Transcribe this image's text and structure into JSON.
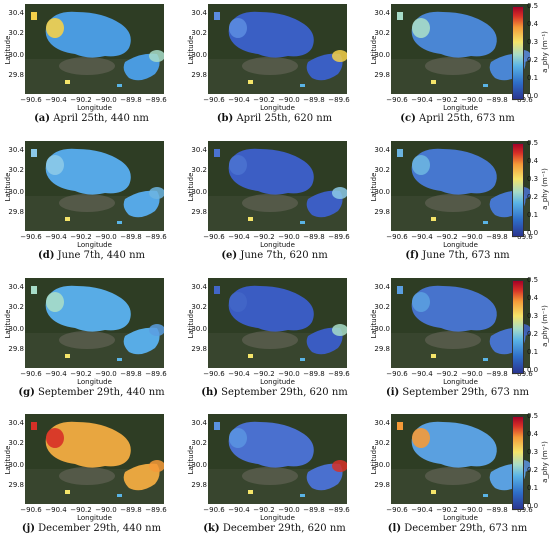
{
  "figure": {
    "axes": {
      "xlabel": "Longitude",
      "ylabel": "Latitude",
      "xticks": [
        "−90.6",
        "−90.4",
        "−90.2",
        "−90.0",
        "−89.8",
        "−89.6"
      ],
      "yticks": [
        "30.4",
        "30.2",
        "30.0",
        "29.8"
      ]
    },
    "colorbar": {
      "label": "a_phy (m⁻¹)",
      "ticks": [
        "0.5",
        "0.4",
        "0.3",
        "0.2",
        "0.1",
        "0.0"
      ],
      "colors": [
        "#2a3590",
        "#2f6fc9",
        "#5ab4e6",
        "#a7dcc8",
        "#f4e46a",
        "#f49a38",
        "#d73027",
        "#a50026"
      ]
    },
    "panels": [
      {
        "letter": "a",
        "caption": " April 25th, 440 nm"
      },
      {
        "letter": "b",
        "caption": " April 25th, 620 nm"
      },
      {
        "letter": "c",
        "caption": " April 25th, 673 nm"
      },
      {
        "letter": "d",
        "caption": " June 7th, 440 nm"
      },
      {
        "letter": "e",
        "caption": " June 7th, 620 nm"
      },
      {
        "letter": "f",
        "caption": " June 7th, 673 nm"
      },
      {
        "letter": "g",
        "caption": " September 29th, 440 nm"
      },
      {
        "letter": "h",
        "caption": " September 29th, 620 nm"
      },
      {
        "letter": "i",
        "caption": " September 29th, 673 nm"
      },
      {
        "letter": "j",
        "caption": " December 29th, 440 nm"
      },
      {
        "letter": "k",
        "caption": " December 29th, 620 nm"
      },
      {
        "letter": "l",
        "caption": " December 29th, 673 nm"
      }
    ]
  }
}
